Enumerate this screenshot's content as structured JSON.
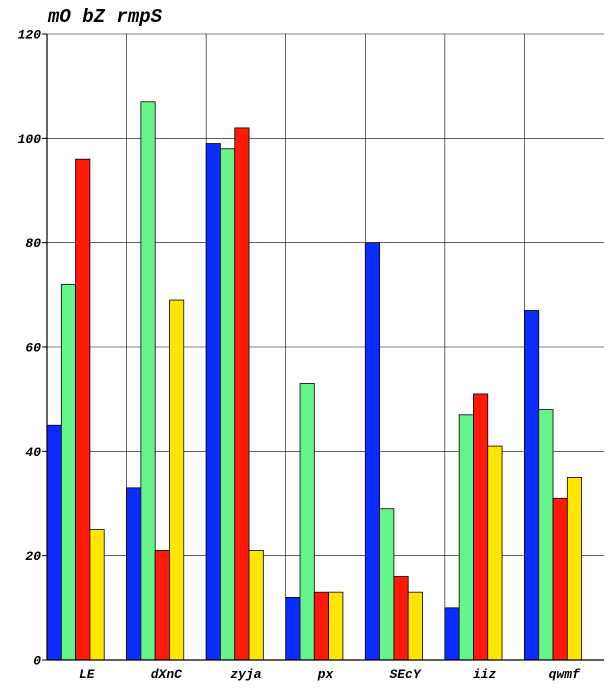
{
  "chart_data": {
    "type": "bar",
    "title": "mO bZ rmpS",
    "xlabel": "",
    "ylabel": "",
    "categories": [
      "LE",
      "dXnC",
      "zyja",
      "px",
      "SEcY",
      "iiz",
      "qwmf"
    ],
    "series": [
      {
        "color": "#0a2cff",
        "values": [
          45,
          33,
          99,
          12,
          80,
          10,
          67
        ]
      },
      {
        "color": "#66f58a",
        "values": [
          72,
          107,
          98,
          53,
          29,
          47,
          48
        ]
      },
      {
        "color": "#ff1a0a",
        "values": [
          96,
          21,
          102,
          13,
          16,
          51,
          31
        ]
      },
      {
        "color": "#ffe600",
        "values": [
          25,
          69,
          21,
          13,
          13,
          41,
          35
        ]
      }
    ],
    "ylim": [
      0,
      120
    ],
    "yticks": [
      0,
      20,
      40,
      60,
      80,
      100,
      120
    ],
    "grid": true,
    "legend": "none"
  }
}
